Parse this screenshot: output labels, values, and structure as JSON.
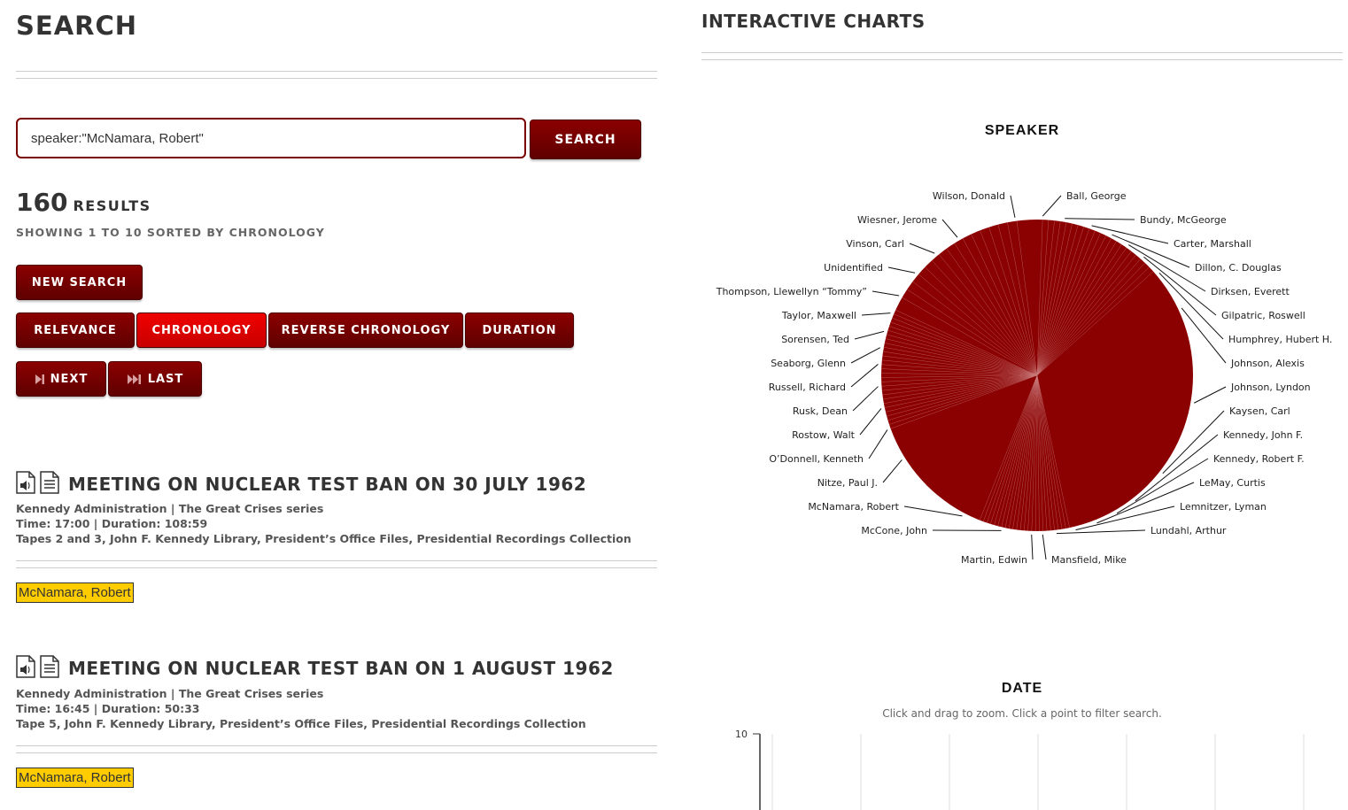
{
  "search": {
    "title": "SEARCH",
    "query": "speaker:\"McNamara, Robert\"",
    "button": "SEARCH"
  },
  "results": {
    "count": "160",
    "count_label": "RESULTS",
    "showing": "SHOWING 1 TO 10 SORTED BY CHRONOLOGY"
  },
  "buttons": {
    "new_search": "NEW SEARCH",
    "sort": [
      {
        "label": "RELEVANCE",
        "active": false
      },
      {
        "label": "CHRONOLOGY",
        "active": true
      },
      {
        "label": "REVERSE CHRONOLOGY",
        "active": false
      },
      {
        "label": "DURATION",
        "active": false
      }
    ],
    "next": "NEXT",
    "last": "LAST"
  },
  "items": [
    {
      "title": "MEETING ON NUCLEAR TEST BAN ON 30 JULY 1962",
      "series": "Kennedy Administration | The Great Crises series",
      "time": "Time: 17:00 | Duration: 108:59",
      "source": "Tapes 2 and 3, John F. Kennedy Library, President’s Office Files, Presidential Recordings Collection",
      "tag": "McNamara, Robert"
    },
    {
      "title": "MEETING ON NUCLEAR TEST BAN ON 1 AUGUST 1962",
      "series": "Kennedy Administration | The Great Crises series",
      "time": "Time: 16:45 | Duration: 50:33",
      "source": "Tape 5, John F. Kennedy Library, President’s Office Files, Presidential Recordings Collection",
      "tag": "McNamara, Robert"
    }
  ],
  "charts": {
    "title": "INTERACTIVE CHARTS",
    "speaker_title": "SPEAKER",
    "date_title": "DATE",
    "date_note": "Click and drag to zoom. Click a point to filter search.",
    "date_ytick": "10"
  },
  "colors": {
    "brand": "#8b0000",
    "active": "#e00000",
    "highlight": "#ffcc00"
  },
  "chart_data": {
    "type": "pie",
    "title": "SPEAKER",
    "labels": [
      "Ball, George",
      "Bundy, McGeorge",
      "Carter, Marshall",
      "Dillon, C. Douglas",
      "Dirksen, Everett",
      "Gilpatric, Roswell",
      "Humphrey, Hubert H.",
      "Johnson, Alexis",
      "Johnson, Lyndon",
      "Kaysen, Carl",
      "Kennedy, John F.",
      "Kennedy, Robert F.",
      "LeMay, Curtis",
      "Lemnitzer, Lyman",
      "Lundahl, Arthur",
      "Mansfield, Mike",
      "Martin, Edwin",
      "McCone, John",
      "McNamara, Robert",
      "Nitze, Paul J.",
      "O’Donnell, Kenneth",
      "Rostow, Walt",
      "Rusk, Dean",
      "Russell, Richard",
      "Seaborg, Glenn",
      "Sorensen, Ted",
      "Taylor, Maxwell",
      "Thompson, Llewellyn “Tommy”",
      "Unidentified",
      "Vinson, Carl",
      "Wiesner, Jerome",
      "Wilson, Donald"
    ],
    "right_side_count": 15,
    "legend": "none",
    "slice_color": "#8b0000"
  }
}
